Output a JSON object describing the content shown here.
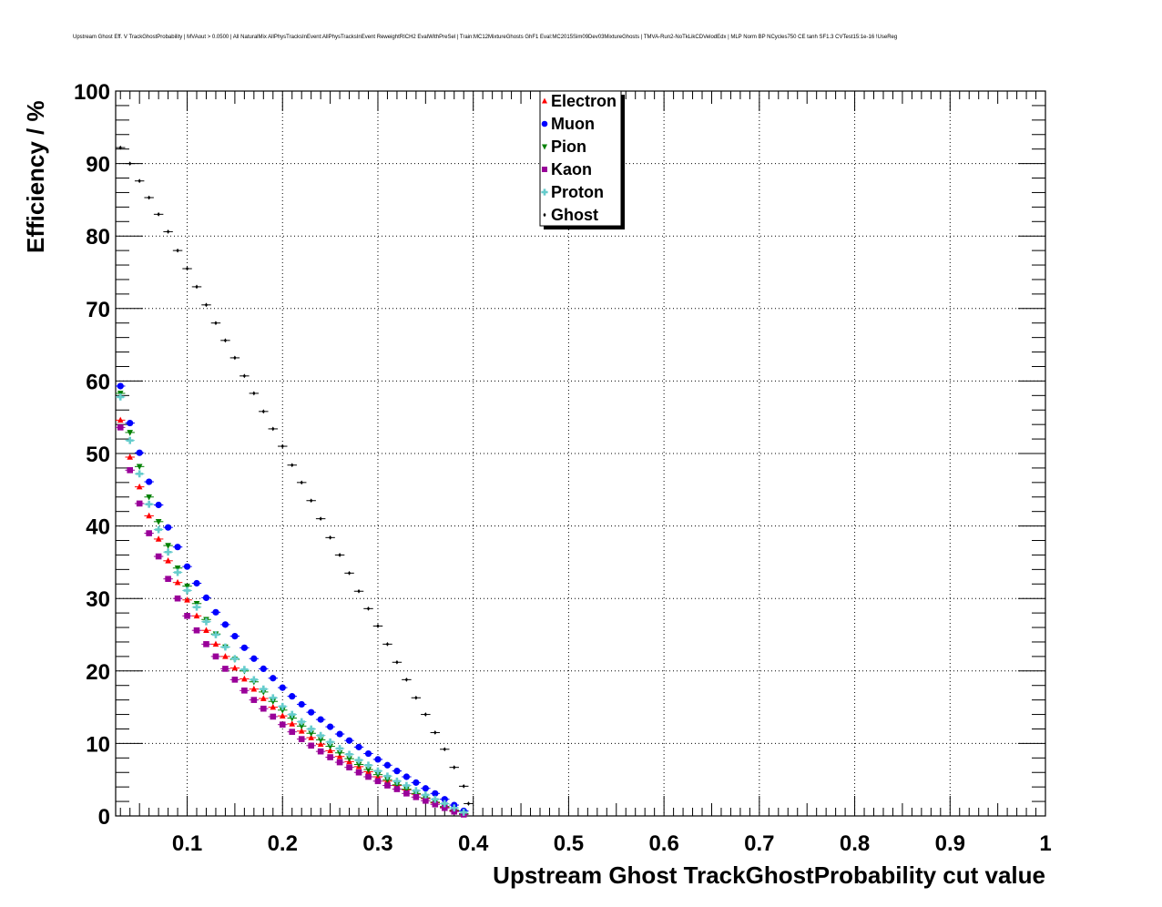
{
  "chart_data": {
    "type": "scatter",
    "title": "Upstream Ghost Eff. V TrackGhostProbability | MVAout > 0.0500 | All NaturalMix AllPhysTracksInEvent:AllPhysTracksInEvent ReweightRICH2 EvalWithPreSel | Train:MC12MixtureGhosts GhF1 Eval:MC2015Sim09Dev03MixtureGhosts | TMVA-Run2-NoTkLikCDVelodEdx | MLP Norm BP NCycles750 CE tanh SF1.3 CVTest15:1e-16 !UseReg",
    "xlabel": "Upstream Ghost TrackGhostProbability cut value",
    "ylabel": "Efficiency / %",
    "xlim": [
      0.025,
      1.0
    ],
    "ylim": [
      0,
      100
    ],
    "x_ticks": [
      "0.1",
      "0.2",
      "0.3",
      "0.4",
      "0.5",
      "0.6",
      "0.7",
      "0.8",
      "0.9",
      "1"
    ],
    "y_ticks": [
      "0",
      "10",
      "20",
      "30",
      "40",
      "50",
      "60",
      "70",
      "80",
      "90",
      "100"
    ],
    "grid": true,
    "legend_position": "top-center",
    "x": [
      0.03,
      0.04,
      0.05,
      0.06,
      0.07,
      0.08,
      0.09,
      0.1,
      0.11,
      0.12,
      0.13,
      0.14,
      0.15,
      0.16,
      0.17,
      0.18,
      0.19,
      0.2,
      0.21,
      0.22,
      0.23,
      0.24,
      0.25,
      0.26,
      0.27,
      0.28,
      0.29,
      0.3,
      0.31,
      0.32,
      0.33,
      0.34,
      0.35,
      0.36,
      0.37,
      0.38,
      0.39
    ],
    "series": [
      {
        "name": "Electron",
        "color": "#ff0000",
        "marker": "triangle-up",
        "values": [
          54.6,
          49.5,
          45.4,
          41.4,
          38.2,
          35.2,
          32.2,
          29.8,
          27.6,
          25.6,
          23.7,
          22.0,
          20.4,
          18.9,
          17.5,
          16.2,
          15.0,
          13.8,
          12.7,
          11.7,
          10.8,
          9.9,
          9.0,
          8.2,
          7.5,
          6.8,
          6.1,
          5.4,
          4.8,
          4.2,
          3.6,
          3.0,
          2.4,
          1.8,
          1.2,
          0.7,
          0.2
        ]
      },
      {
        "name": "Muon",
        "color": "#0000ff",
        "marker": "circle",
        "values": [
          59.3,
          54.2,
          50.1,
          46.1,
          42.9,
          39.8,
          37.1,
          34.4,
          32.1,
          30.1,
          28.1,
          26.4,
          24.8,
          23.2,
          21.7,
          20.3,
          19.0,
          17.7,
          16.5,
          15.4,
          14.3,
          13.3,
          12.3,
          11.3,
          10.4,
          9.5,
          8.6,
          7.8,
          7.0,
          6.2,
          5.4,
          4.6,
          3.8,
          3.1,
          2.3,
          1.5,
          0.7
        ]
      },
      {
        "name": "Pion",
        "color": "#008000",
        "marker": "triangle-down",
        "values": [
          58.3,
          52.9,
          48.2,
          44.0,
          40.6,
          37.3,
          34.2,
          31.7,
          29.3,
          27.1,
          25.1,
          23.3,
          21.6,
          20.0,
          18.5,
          17.1,
          15.8,
          14.6,
          13.5,
          12.4,
          11.4,
          10.5,
          9.6,
          8.7,
          7.9,
          7.1,
          6.4,
          5.7,
          5.0,
          4.3,
          3.7,
          3.1,
          2.5,
          1.9,
          1.3,
          0.8,
          0.3
        ]
      },
      {
        "name": "Kaon",
        "color": "#990099",
        "marker": "square",
        "values": [
          53.6,
          47.7,
          43.1,
          39.0,
          35.8,
          32.7,
          30.0,
          27.6,
          25.6,
          23.7,
          22.0,
          20.3,
          18.8,
          17.3,
          16.0,
          14.8,
          13.7,
          12.6,
          11.6,
          10.6,
          9.7,
          8.9,
          8.1,
          7.4,
          6.7,
          6.0,
          5.4,
          4.8,
          4.2,
          3.7,
          3.1,
          2.6,
          2.1,
          1.6,
          1.1,
          0.6,
          0.2
        ]
      },
      {
        "name": "Proton",
        "color": "#66cccc",
        "marker": "cross",
        "values": [
          57.8,
          51.8,
          47.2,
          43.0,
          39.5,
          36.4,
          33.6,
          31.1,
          28.8,
          26.8,
          25.0,
          23.3,
          21.7,
          20.2,
          18.8,
          17.5,
          16.3,
          15.1,
          14.0,
          13.0,
          12.0,
          11.1,
          10.2,
          9.3,
          8.5,
          7.7,
          7.0,
          6.2,
          5.5,
          4.8,
          4.2,
          3.5,
          2.9,
          2.3,
          1.7,
          1.1,
          0.5
        ]
      },
      {
        "name": "Ghost",
        "color": "#000000",
        "marker": "diamond",
        "values": [
          92.2,
          90.0,
          87.6,
          85.3,
          83.0,
          80.6,
          78.0,
          75.5,
          73.0,
          70.5,
          68.0,
          65.6,
          63.2,
          60.7,
          58.3,
          55.8,
          53.4,
          51.0,
          48.4,
          46.0,
          43.5,
          41.0,
          38.4,
          36.0,
          33.5,
          31.0,
          28.6,
          26.2,
          23.7,
          21.2,
          18.8,
          16.3,
          14.0,
          11.5,
          9.2,
          6.7,
          4.1
        ]
      }
    ],
    "ghost_last_point": {
      "x": 0.395,
      "value": 1.7
    }
  }
}
